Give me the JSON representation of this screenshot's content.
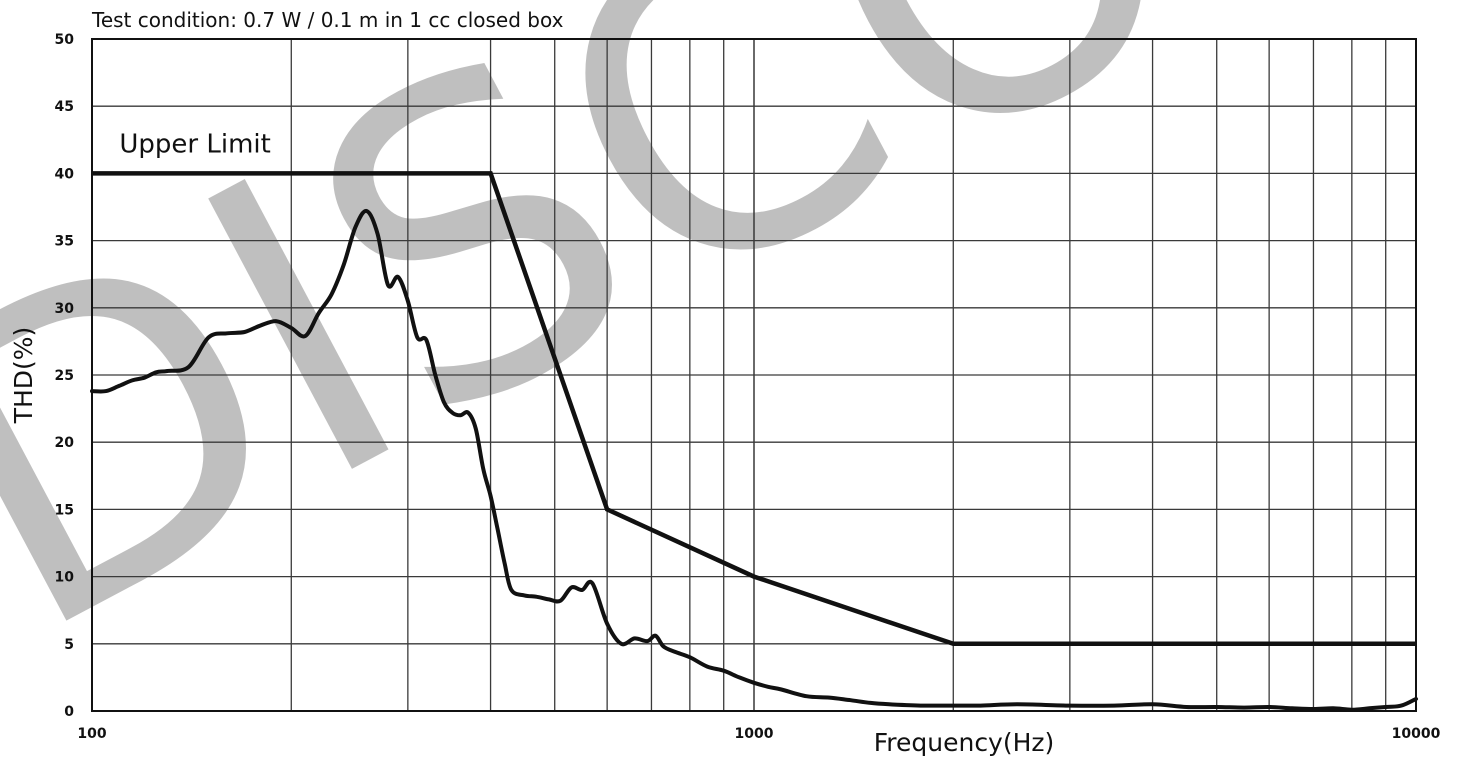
{
  "chart_data": {
    "type": "line",
    "title": "Test condition: 0.7 W / 0.1 m in 1 cc closed box",
    "xlabel": "Frequency(Hz)",
    "ylabel": "THD(%)",
    "x_scale": "log",
    "xlim": [
      100,
      10000
    ],
    "ylim": [
      0,
      50
    ],
    "x_ticks": [
      100,
      1000,
      10000
    ],
    "x_tick_labels": [
      "100",
      "1000",
      "10000"
    ],
    "y_ticks": [
      0,
      5,
      10,
      15,
      20,
      25,
      30,
      35,
      40,
      45,
      50
    ],
    "y_tick_labels": [
      "0",
      "5",
      "10",
      "15",
      "20",
      "25",
      "30",
      "35",
      "40",
      "45",
      "50"
    ],
    "grid": true,
    "legend": "none",
    "annotations": [
      {
        "text": "Upper Limit",
        "x": 110,
        "y": 42
      }
    ],
    "watermark": "DISCO",
    "series": [
      {
        "name": "Upper Limit",
        "x": [
          100,
          400,
          600,
          1000,
          2000,
          10000
        ],
        "y": [
          40,
          40,
          15,
          10,
          5,
          5
        ]
      },
      {
        "name": "THD",
        "x": [
          100,
          105,
          110,
          115,
          120,
          125,
          130,
          140,
          150,
          160,
          170,
          180,
          190,
          200,
          210,
          220,
          230,
          240,
          250,
          260,
          270,
          280,
          290,
          300,
          310,
          320,
          330,
          340,
          350,
          360,
          370,
          380,
          390,
          400,
          410,
          420,
          430,
          450,
          470,
          490,
          510,
          530,
          550,
          570,
          600,
          630,
          660,
          690,
          710,
          730,
          760,
          800,
          850,
          900,
          950,
          1000,
          1050,
          1100,
          1200,
          1300,
          1400,
          1500,
          1600,
          1800,
          2000,
          2200,
          2500,
          3000,
          3500,
          4000,
          4500,
          5000,
          5500,
          6000,
          6500,
          7000,
          7500,
          8000,
          8500,
          9000,
          9500,
          10000
        ],
        "y": [
          23.8,
          23.8,
          24.2,
          24.6,
          24.8,
          25.2,
          25.3,
          25.6,
          27.8,
          28.1,
          28.2,
          28.7,
          29.0,
          28.5,
          27.9,
          29.6,
          31.0,
          33.2,
          36.0,
          37.2,
          35.5,
          31.7,
          32.3,
          30.5,
          27.8,
          27.6,
          25.0,
          23.0,
          22.2,
          22.0,
          22.2,
          21.0,
          18.0,
          16.0,
          13.5,
          11.0,
          9.0,
          8.6,
          8.5,
          8.3,
          8.2,
          9.2,
          9.0,
          9.5,
          6.5,
          5.0,
          5.4,
          5.2,
          5.6,
          4.8,
          4.4,
          4.0,
          3.3,
          3.0,
          2.5,
          2.1,
          1.8,
          1.6,
          1.1,
          1.0,
          0.8,
          0.6,
          0.5,
          0.4,
          0.4,
          0.4,
          0.5,
          0.4,
          0.4,
          0.5,
          0.3,
          0.3,
          0.25,
          0.3,
          0.2,
          0.15,
          0.2,
          0.1,
          0.2,
          0.3,
          0.4,
          0.9
        ]
      }
    ]
  }
}
